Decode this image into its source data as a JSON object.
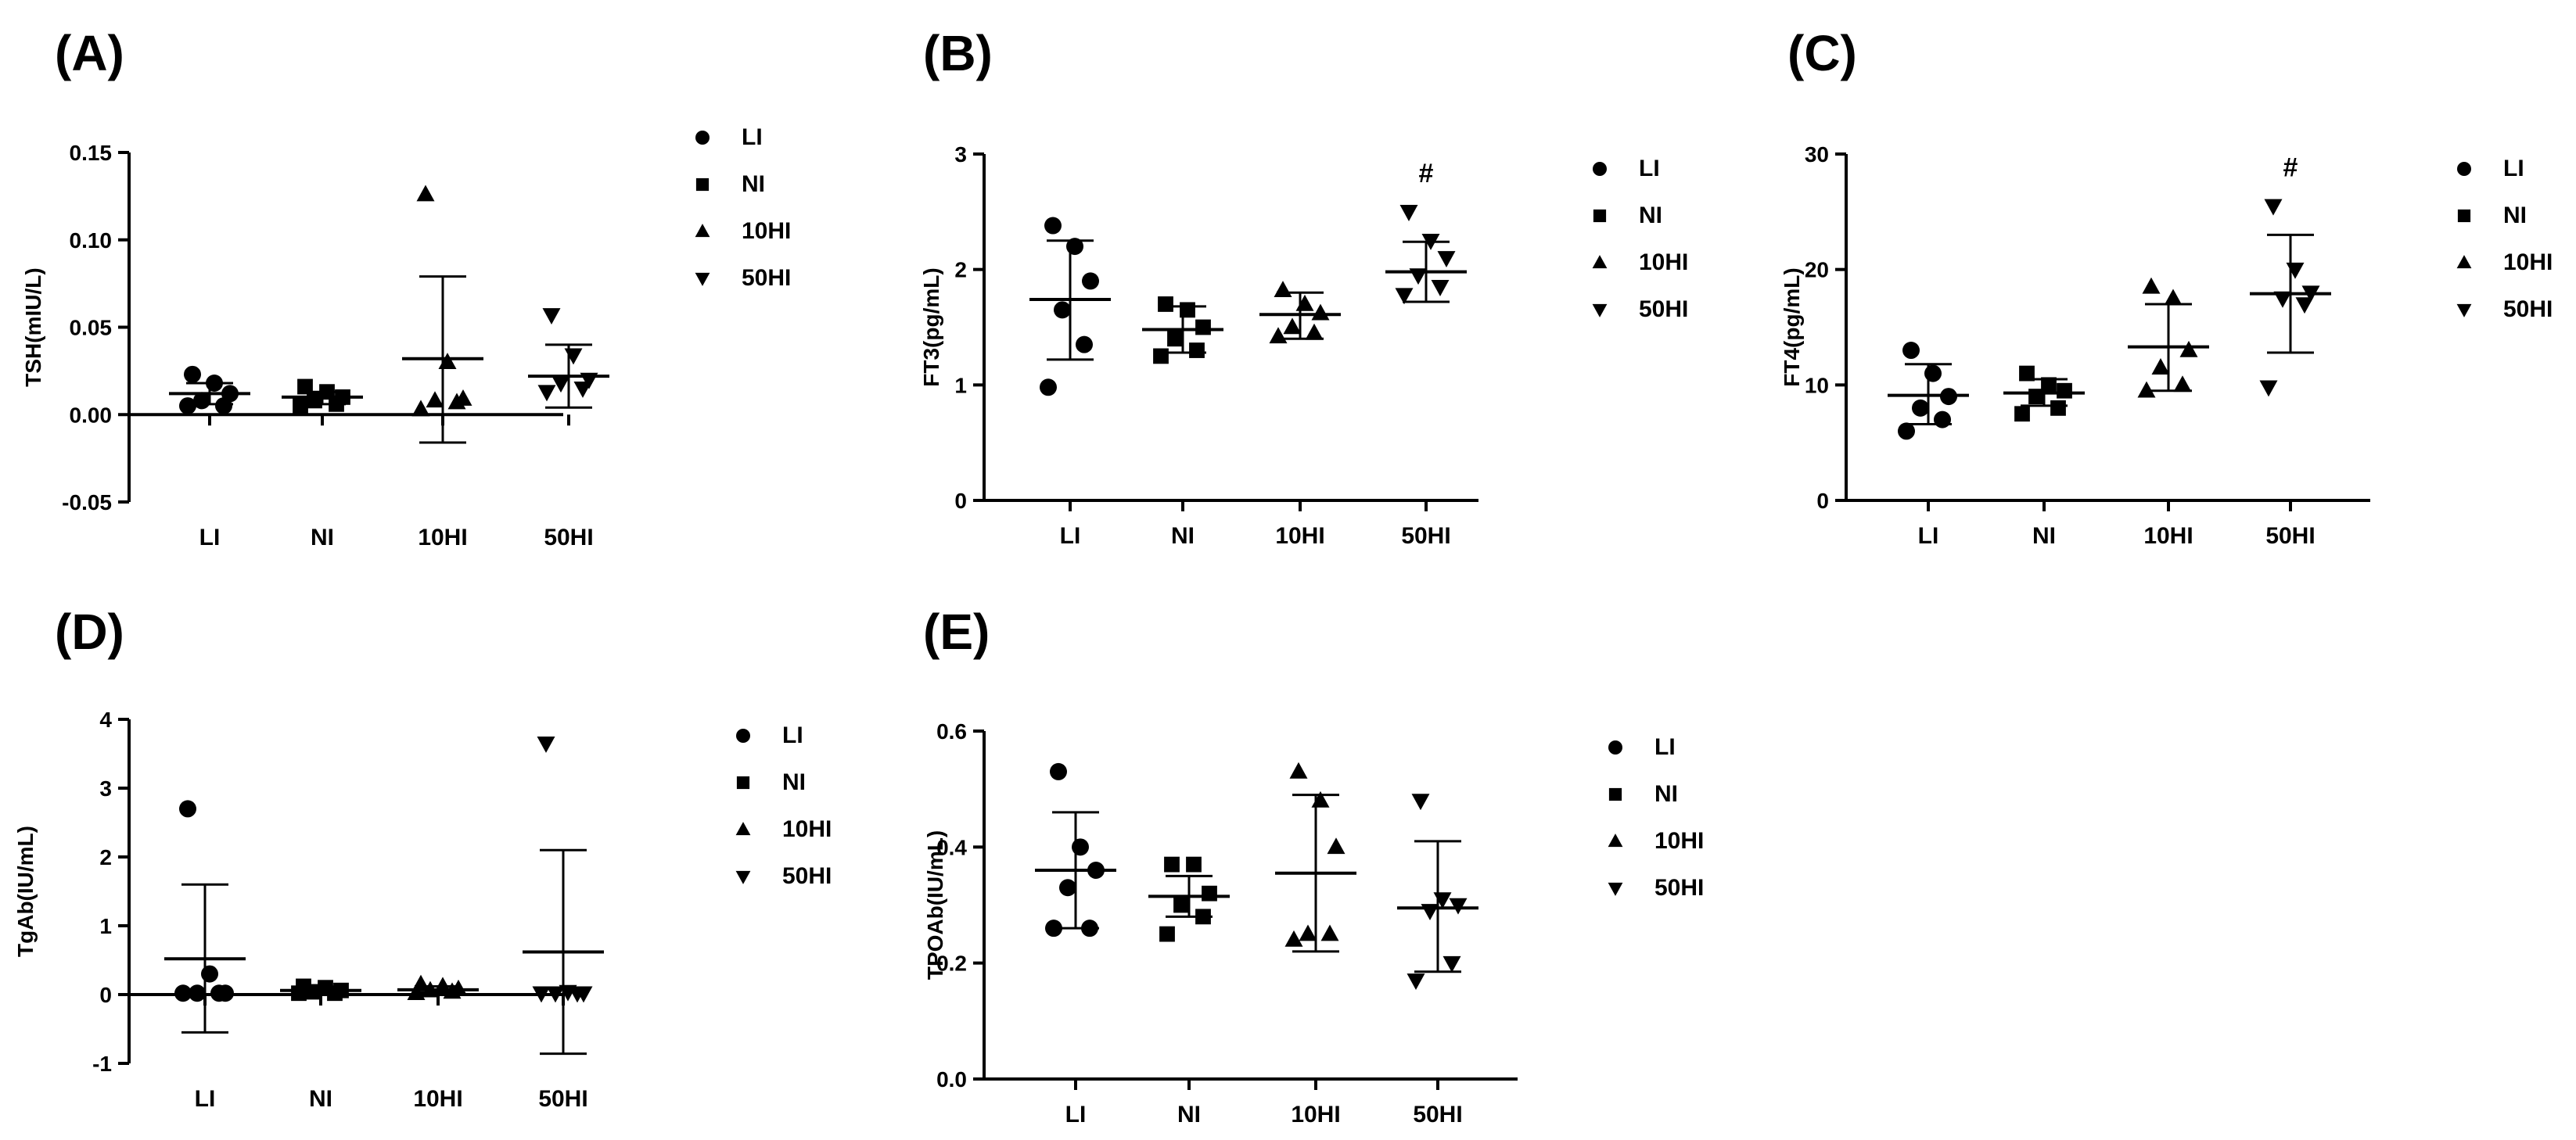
{
  "figure": {
    "legend_labels": [
      "LI",
      "NI",
      "10HI",
      "50HI"
    ]
  },
  "chart_data": [
    {
      "type": "scatter",
      "panel_label": "(A)",
      "title": "",
      "xlabel": "",
      "ylabel": "TSH(mIU/L)",
      "categories": [
        "LI",
        "NI",
        "10HI",
        "50HI"
      ],
      "ylim": [
        -0.05,
        0.15
      ],
      "yticks": [
        -0.05,
        0.0,
        0.05,
        0.1,
        0.15
      ],
      "ytick_labels": [
        "-0.05",
        "0.00",
        "0.05",
        "0.10",
        "0.15"
      ],
      "series": [
        {
          "name": "LI",
          "marker": "circle",
          "points": [
            0.023,
            0.018,
            0.012,
            0.008,
            0.005,
            0.005
          ],
          "mean": 0.012,
          "sd_low": 0.006,
          "sd_high": 0.018
        },
        {
          "name": "NI",
          "marker": "square",
          "points": [
            0.016,
            0.013,
            0.01,
            0.008,
            0.006,
            0.005
          ],
          "mean": 0.01,
          "sd_low": 0.006,
          "sd_high": 0.013
        },
        {
          "name": "10HI",
          "marker": "triangle-up",
          "points": [
            0.126,
            0.03,
            0.009,
            0.008,
            0.007,
            0.003
          ],
          "mean": 0.032,
          "sd_low": -0.016,
          "sd_high": 0.079
        },
        {
          "name": "50HI",
          "marker": "triangle-down",
          "points": [
            0.057,
            0.034,
            0.02,
            0.018,
            0.015,
            0.013
          ],
          "mean": 0.022,
          "sd_low": 0.004,
          "sd_high": 0.04
        }
      ],
      "annotations": []
    },
    {
      "type": "scatter",
      "panel_label": "(B)",
      "title": "",
      "xlabel": "",
      "ylabel": "FT3(pg/mL)",
      "categories": [
        "LI",
        "NI",
        "10HI",
        "50HI"
      ],
      "ylim": [
        0,
        3
      ],
      "yticks": [
        0,
        1,
        2,
        3
      ],
      "ytick_labels": [
        "0",
        "1",
        "2",
        "3"
      ],
      "series": [
        {
          "name": "LI",
          "marker": "circle",
          "points": [
            2.38,
            2.2,
            1.9,
            1.65,
            1.35,
            0.98
          ],
          "mean": 1.74,
          "sd_low": 1.22,
          "sd_high": 2.25
        },
        {
          "name": "NI",
          "marker": "square",
          "points": [
            1.7,
            1.65,
            1.5,
            1.4,
            1.3,
            1.25
          ],
          "mean": 1.48,
          "sd_low": 1.28,
          "sd_high": 1.68
        },
        {
          "name": "10HI",
          "marker": "triangle-up",
          "points": [
            1.82,
            1.7,
            1.62,
            1.5,
            1.45,
            1.42
          ],
          "mean": 1.61,
          "sd_low": 1.4,
          "sd_high": 1.8
        },
        {
          "name": "50HI",
          "marker": "triangle-down",
          "points": [
            2.5,
            2.25,
            2.1,
            1.95,
            1.85,
            1.78
          ],
          "mean": 1.98,
          "sd_low": 1.72,
          "sd_high": 2.24
        }
      ],
      "annotations": [
        {
          "category": "50HI",
          "text": "#"
        }
      ]
    },
    {
      "type": "scatter",
      "panel_label": "(C)",
      "title": "",
      "xlabel": "",
      "ylabel": "FT4(pg/mL)",
      "categories": [
        "LI",
        "NI",
        "10HI",
        "50HI"
      ],
      "ylim": [
        0,
        30
      ],
      "yticks": [
        0,
        10,
        20,
        30
      ],
      "ytick_labels": [
        "0",
        "10",
        "20",
        "30"
      ],
      "series": [
        {
          "name": "LI",
          "marker": "circle",
          "points": [
            13.0,
            11.0,
            9.0,
            8.0,
            7.0,
            6.0
          ],
          "mean": 9.1,
          "sd_low": 6.6,
          "sd_high": 11.8
        },
        {
          "name": "NI",
          "marker": "square",
          "points": [
            11.0,
            10.0,
            9.5,
            9.0,
            8.0,
            7.5
          ],
          "mean": 9.3,
          "sd_low": 8.2,
          "sd_high": 10.5
        },
        {
          "name": "10HI",
          "marker": "triangle-up",
          "points": [
            18.5,
            17.5,
            13.0,
            11.5,
            10.0,
            9.5
          ],
          "mean": 13.3,
          "sd_low": 9.5,
          "sd_high": 17.0
        },
        {
          "name": "50HI",
          "marker": "triangle-down",
          "points": [
            25.5,
            20.0,
            18.0,
            17.5,
            17.0,
            9.8
          ],
          "mean": 17.9,
          "sd_low": 12.8,
          "sd_high": 23.0
        }
      ],
      "annotations": [
        {
          "category": "50HI",
          "text": "#"
        }
      ]
    },
    {
      "type": "scatter",
      "panel_label": "(D)",
      "title": "",
      "xlabel": "",
      "ylabel": "TgAb(IU/mL)",
      "categories": [
        "LI",
        "NI",
        "10HI",
        "50HI"
      ],
      "ylim": [
        -1,
        4
      ],
      "yticks": [
        -1,
        0,
        1,
        2,
        3,
        4
      ],
      "ytick_labels": [
        "-1",
        "0",
        "1",
        "2",
        "3",
        "4"
      ],
      "series": [
        {
          "name": "LI",
          "marker": "circle",
          "points": [
            2.7,
            0.3,
            0.02,
            0.02,
            0.02,
            0.02
          ],
          "mean": 0.52,
          "sd_low": -0.55,
          "sd_high": 1.6
        },
        {
          "name": "NI",
          "marker": "square",
          "points": [
            0.12,
            0.1,
            0.06,
            0.04,
            0.02,
            0.02
          ],
          "mean": 0.06,
          "sd_low": 0.02,
          "sd_high": 0.1
        },
        {
          "name": "10HI",
          "marker": "triangle-up",
          "points": [
            0.15,
            0.12,
            0.08,
            0.06,
            0.04,
            0.02
          ],
          "mean": 0.07,
          "sd_low": 0.03,
          "sd_high": 0.12
        },
        {
          "name": "50HI",
          "marker": "triangle-down",
          "points": [
            3.65,
            0.04,
            0.02,
            0.02,
            0.02,
            0.02
          ],
          "mean": 0.62,
          "sd_low": -0.86,
          "sd_high": 2.1
        }
      ],
      "annotations": []
    },
    {
      "type": "scatter",
      "panel_label": "(E)",
      "title": "",
      "xlabel": "",
      "ylabel": "TPOAb(IU/mL)",
      "categories": [
        "LI",
        "NI",
        "10HI",
        "50HI"
      ],
      "ylim": [
        0,
        0.6
      ],
      "yticks": [
        0.0,
        0.2,
        0.4,
        0.6
      ],
      "ytick_labels": [
        "0.0",
        "0.2",
        "0.4",
        "0.6"
      ],
      "series": [
        {
          "name": "LI",
          "marker": "circle",
          "points": [
            0.53,
            0.4,
            0.36,
            0.33,
            0.26,
            0.26
          ],
          "mean": 0.36,
          "sd_low": 0.26,
          "sd_high": 0.46
        },
        {
          "name": "NI",
          "marker": "square",
          "points": [
            0.37,
            0.37,
            0.32,
            0.3,
            0.28,
            0.25
          ],
          "mean": 0.315,
          "sd_low": 0.28,
          "sd_high": 0.35
        },
        {
          "name": "10HI",
          "marker": "triangle-up",
          "points": [
            0.53,
            0.48,
            0.4,
            0.25,
            0.25,
            0.24
          ],
          "mean": 0.355,
          "sd_low": 0.22,
          "sd_high": 0.49
        },
        {
          "name": "50HI",
          "marker": "triangle-down",
          "points": [
            0.48,
            0.31,
            0.3,
            0.29,
            0.2,
            0.17
          ],
          "mean": 0.295,
          "sd_low": 0.185,
          "sd_high": 0.41
        }
      ],
      "annotations": []
    }
  ]
}
